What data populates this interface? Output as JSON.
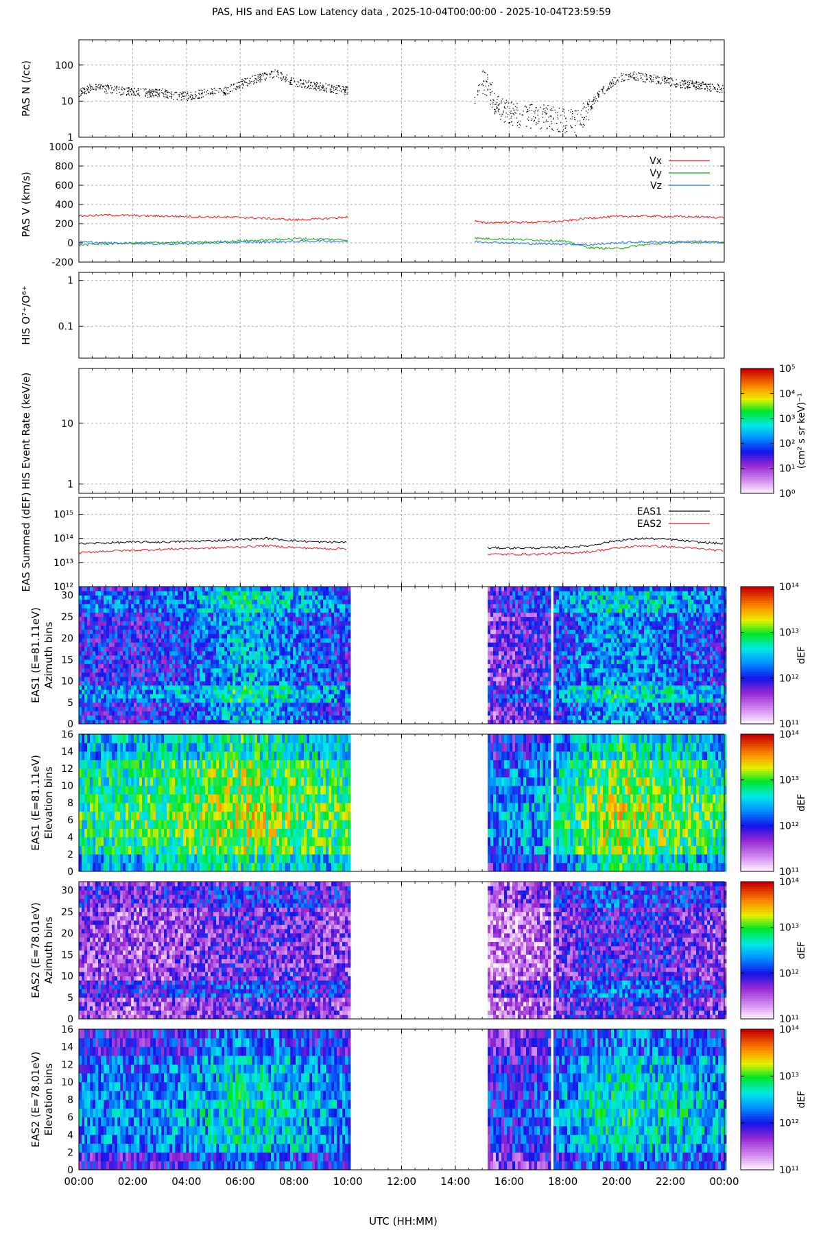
{
  "title": "PAS, HIS and EAS Low Latency data ,  2025-10-04T00:00:00 - 2025-10-04T23:59:59",
  "xaxis": {
    "label": "UTC (HH:MM)",
    "range_hours": [
      0,
      24
    ],
    "ticks": [
      "00:00",
      "02:00",
      "04:00",
      "06:00",
      "08:00",
      "10:00",
      "12:00",
      "14:00",
      "16:00",
      "18:00",
      "20:00",
      "22:00",
      "00:00"
    ]
  },
  "colors": {
    "vx": "#e41a1c",
    "vy": "#1aa31a",
    "vz": "#1f78e4",
    "eas1": "#000000",
    "eas2": "#e41a1c"
  },
  "chart_data": [
    {
      "type": "scatter",
      "panel": "PAS N",
      "ylabel": "PAS N (/cc)",
      "yscale": "log",
      "ylim": [
        1,
        500
      ],
      "yticks": [
        "1",
        "10",
        "100"
      ],
      "data_gaps_hours": [
        [
          10.0,
          14.7
        ]
      ],
      "x_hours": [
        0,
        0.5,
        1,
        1.5,
        2,
        2.5,
        3,
        3.5,
        4,
        4.5,
        5,
        5.5,
        6,
        6.5,
        7,
        7.3,
        7.6,
        8,
        8.5,
        9,
        9.5,
        10,
        14.7,
        15,
        15.5,
        16,
        16.5,
        17,
        17.5,
        18,
        18.5,
        19,
        19.5,
        20,
        20.5,
        21,
        21.5,
        22,
        22.5,
        23,
        23.5,
        24
      ],
      "values": [
        18,
        25,
        22,
        20,
        19,
        17,
        18,
        15,
        14,
        16,
        18,
        20,
        30,
        40,
        50,
        60,
        45,
        35,
        30,
        25,
        22,
        20,
        10,
        35,
        7,
        5,
        4,
        4,
        3.5,
        3,
        2.5,
        6,
        20,
        40,
        55,
        45,
        40,
        35,
        30,
        28,
        25,
        22
      ]
    },
    {
      "type": "line",
      "panel": "PAS V",
      "ylabel": "PAS V (km/s)",
      "ylim": [
        -200,
        1000
      ],
      "yticks": [
        "-200",
        "0",
        "200",
        "400",
        "600",
        "800",
        "1000"
      ],
      "legend": "top-right",
      "data_gaps_hours": [
        [
          10.0,
          14.7
        ]
      ],
      "x_hours": [
        0,
        1,
        2,
        3,
        4,
        5,
        6,
        7,
        8,
        9,
        10,
        14.7,
        15,
        16,
        17,
        18,
        19,
        20,
        21,
        22,
        23,
        24
      ],
      "series": [
        {
          "name": "Vx",
          "values": [
            280,
            290,
            285,
            280,
            275,
            270,
            265,
            255,
            240,
            250,
            270,
            230,
            210,
            215,
            215,
            225,
            260,
            275,
            280,
            275,
            270,
            265
          ]
        },
        {
          "name": "Vy",
          "values": [
            -20,
            -10,
            0,
            5,
            5,
            10,
            20,
            30,
            45,
            40,
            30,
            50,
            45,
            40,
            30,
            20,
            -50,
            -60,
            -20,
            0,
            5,
            10
          ]
        },
        {
          "name": "Vz",
          "values": [
            10,
            0,
            -5,
            -10,
            -10,
            0,
            5,
            10,
            15,
            20,
            15,
            15,
            10,
            0,
            -10,
            -10,
            -20,
            0,
            10,
            10,
            15,
            5
          ]
        }
      ]
    },
    {
      "type": "scatter",
      "panel": "HIS O7+/O6+",
      "ylabel": "HIS O⁷⁺/O⁶⁺",
      "yscale": "log",
      "ylim": [
        0.02,
        1.5
      ],
      "yticks": [
        "0.1",
        "1"
      ],
      "x_hours": [],
      "values": []
    },
    {
      "type": "heatmap",
      "panel": "HIS Event Rate",
      "ylabel": "HIS Event Rate (keV/e)",
      "yscale": "log",
      "ylim": [
        0.7,
        80
      ],
      "yticks": [
        "1",
        "10"
      ],
      "colorbar": {
        "label": "(cm² s sr keV)⁻¹",
        "range": [
          1,
          100000
        ],
        "ticks": [
          "10⁰",
          "10¹",
          "10²",
          "10³",
          "10⁴",
          "10⁵"
        ]
      },
      "values": []
    },
    {
      "type": "line",
      "panel": "EAS Summed",
      "ylabel": "EAS Summed (dEF)",
      "yscale": "log",
      "ylim": [
        1000000000000.0,
        5000000000000000.0
      ],
      "yticks": [
        "10¹²",
        "10¹³",
        "10¹⁴",
        "10¹⁵"
      ],
      "legend": "top-right",
      "data_gaps_hours": [
        [
          10.0,
          15.2
        ]
      ],
      "x_hours": [
        0,
        1,
        2,
        3,
        4,
        5,
        6,
        7,
        8,
        9,
        10,
        15.2,
        16,
        17,
        18,
        19,
        20,
        21,
        22,
        23,
        24
      ],
      "series": [
        {
          "name": "EAS1",
          "values": [
            60000000000000.0,
            65000000000000.0,
            70000000000000.0,
            70000000000000.0,
            75000000000000.0,
            80000000000000.0,
            90000000000000.0,
            100000000000000.0,
            80000000000000.0,
            70000000000000.0,
            70000000000000.0,
            40000000000000.0,
            40000000000000.0,
            40000000000000.0,
            42000000000000.0,
            50000000000000.0,
            80000000000000.0,
            100000000000000.0,
            90000000000000.0,
            70000000000000.0,
            60000000000000.0
          ]
        },
        {
          "name": "EAS2",
          "values": [
            25000000000000.0,
            30000000000000.0,
            32000000000000.0,
            35000000000000.0,
            38000000000000.0,
            40000000000000.0,
            45000000000000.0,
            50000000000000.0,
            42000000000000.0,
            38000000000000.0,
            38000000000000.0,
            22000000000000.0,
            22000000000000.0,
            22000000000000.0,
            24000000000000.0,
            28000000000000.0,
            40000000000000.0,
            50000000000000.0,
            45000000000000.0,
            38000000000000.0,
            30000000000000.0
          ]
        }
      ]
    },
    {
      "type": "heatmap",
      "panel": "EAS1 Azimuth",
      "ylabel": [
        "EAS1 (E=81.11eV)",
        "Azimuth bins"
      ],
      "ylim": [
        0,
        32
      ],
      "yticks": [
        "0",
        "5",
        "10",
        "15",
        "20",
        "25",
        "30"
      ],
      "colorbar": {
        "label": "dEF",
        "range": [
          100000000000.0,
          100000000000000.0
        ],
        "ticks": [
          "10¹¹",
          "10¹²",
          "10¹³",
          "10¹⁴"
        ]
      },
      "data_gaps_hours": [
        [
          10.0,
          15.2
        ],
        [
          17.45,
          17.55
        ]
      ],
      "x_hours": [
        0,
        2,
        4,
        6,
        8,
        10,
        15.2,
        17,
        18.5,
        20,
        22,
        24
      ],
      "mean_log_def": [
        12.0,
        11.9,
        12.1,
        12.5,
        12.2,
        12.0,
        11.6,
        11.8,
        12.2,
        12.4,
        12.2,
        12.0
      ]
    },
    {
      "type": "heatmap",
      "panel": "EAS1 Elevation",
      "ylabel": [
        "EAS1 (E=81.11eV)",
        "Elevation bins"
      ],
      "ylim": [
        0,
        16
      ],
      "yticks": [
        "0",
        "2",
        "4",
        "6",
        "8",
        "10",
        "12",
        "14",
        "16"
      ],
      "colorbar": {
        "label": "dEF",
        "range": [
          100000000000.0,
          100000000000000.0
        ],
        "ticks": [
          "10¹¹",
          "10¹²",
          "10¹³",
          "10¹⁴"
        ]
      },
      "data_gaps_hours": [
        [
          10.0,
          15.2
        ],
        [
          17.45,
          17.55
        ]
      ],
      "x_hours": [
        0,
        2,
        4,
        6,
        8,
        10,
        15.2,
        17,
        18.5,
        20,
        22,
        24
      ],
      "mean_log_def": [
        12.5,
        12.6,
        12.7,
        12.9,
        12.7,
        12.6,
        12.0,
        12.1,
        12.6,
        12.9,
        12.7,
        12.5
      ]
    },
    {
      "type": "heatmap",
      "panel": "EAS2 Azimuth",
      "ylabel": [
        "EAS2 (E=78.01eV)",
        "Azimuth bins"
      ],
      "ylim": [
        0,
        32
      ],
      "yticks": [
        "0",
        "5",
        "10",
        "15",
        "20",
        "25",
        "30"
      ],
      "colorbar": {
        "label": "dEF",
        "range": [
          100000000000.0,
          100000000000000.0
        ],
        "ticks": [
          "10¹¹",
          "10¹²",
          "10¹³",
          "10¹⁴"
        ]
      },
      "data_gaps_hours": [
        [
          10.0,
          15.2
        ],
        [
          17.45,
          17.55
        ]
      ],
      "x_hours": [
        0,
        2,
        4,
        6,
        8,
        10,
        15.2,
        17,
        18.5,
        20,
        22,
        24
      ],
      "mean_log_def": [
        11.6,
        11.5,
        11.6,
        11.8,
        11.7,
        11.6,
        11.3,
        11.4,
        11.8,
        11.9,
        11.8,
        11.6
      ]
    },
    {
      "type": "heatmap",
      "panel": "EAS2 Elevation",
      "ylabel": [
        "EAS2 (E=78.01eV)",
        "Elevation bins"
      ],
      "ylim": [
        0,
        16
      ],
      "yticks": [
        "0",
        "2",
        "4",
        "6",
        "8",
        "10",
        "12",
        "14",
        "16"
      ],
      "colorbar": {
        "label": "dEF",
        "range": [
          100000000000.0,
          100000000000000.0
        ],
        "ticks": [
          "10¹¹",
          "10¹²",
          "10¹³",
          "10¹⁴"
        ]
      },
      "data_gaps_hours": [
        [
          10.0,
          15.2
        ],
        [
          17.45,
          17.55
        ]
      ],
      "x_hours": [
        0,
        2,
        4,
        6,
        8,
        10,
        15.2,
        17,
        18.5,
        20,
        22,
        24
      ],
      "mean_log_def": [
        12.0,
        12.0,
        12.1,
        12.4,
        12.2,
        12.0,
        11.7,
        11.8,
        12.2,
        12.4,
        12.3,
        12.1
      ]
    }
  ]
}
